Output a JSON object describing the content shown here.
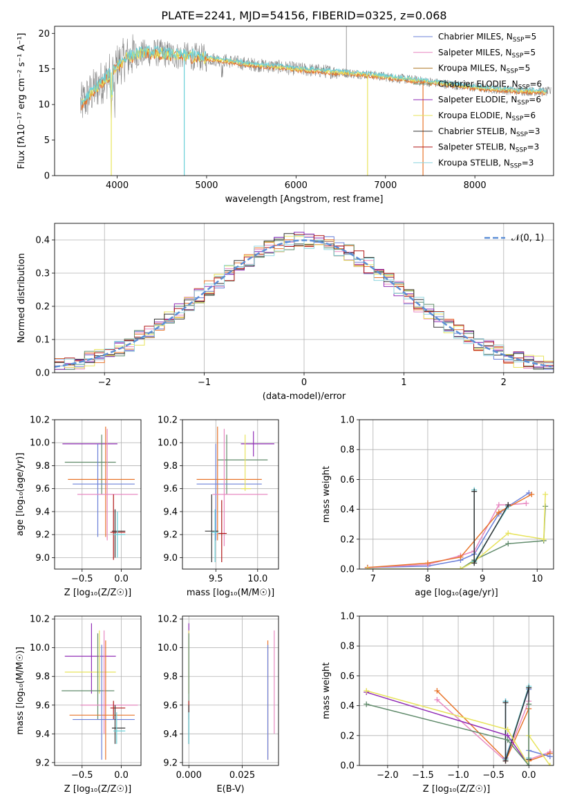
{
  "figure_title": "PLATE=2241, MJD=54156, FIBERID=0325, z=0.068",
  "model_colors": {
    "chabrier_miles": "#6a7fd8",
    "salpeter_miles": "#e887c0",
    "kroupa_miles": "#b07a2a",
    "chabrier_elodie": "#5f8a6a",
    "salpeter_elodie": "#8f2bb5",
    "kroupa_elodie": "#e7e35a",
    "chabrier_stelib": "#333333",
    "salpeter_stelib": "#b01515",
    "kroupa_stelib": "#8fd6df",
    "orange": "#e8742a",
    "data_grey": "#808080",
    "model_cyan": "#6ad0d8",
    "gauss": "#5b8ed6"
  },
  "chart_data": [
    {
      "id": "spectrum",
      "type": "line",
      "title": "PLATE=2241, MJD=54156, FIBERID=0325, z=0.068",
      "xlabel": "wavelength [Angstrom, rest frame]",
      "ylabel": "Flux [fλ10⁻¹⁷ erg cm⁻² s⁻¹ A⁻¹]",
      "xlim": [
        3300,
        8880
      ],
      "ylim": [
        0,
        21
      ],
      "xticks": [
        4000,
        5000,
        6000,
        7000,
        8000
      ],
      "yticks": [
        0,
        5,
        10,
        15,
        20
      ],
      "grid": false,
      "legend_position": "top-right",
      "legend": [
        {
          "label": "Chabrier MILES, N",
          "sub": "SSP",
          "suffix": "=5",
          "color": "#6a7fd8"
        },
        {
          "label": "Salpeter MILES, N",
          "sub": "SSP",
          "suffix": "=5",
          "color": "#e887c0"
        },
        {
          "label": "Kroupa MILES, N",
          "sub": "SSP",
          "suffix": "=5",
          "color": "#b07a2a"
        },
        {
          "label": "Chabrier ELODIE, N",
          "sub": "SSP",
          "suffix": "=6",
          "color": "#5f8a6a"
        },
        {
          "label": "Salpeter ELODIE, N",
          "sub": "SSP",
          "suffix": "=6",
          "color": "#8f2bb5"
        },
        {
          "label": "Kroupa ELODIE, N",
          "sub": "SSP",
          "suffix": "=6",
          "color": "#e7e35a"
        },
        {
          "label": "Chabrier STELIB, N",
          "sub": "SSP",
          "suffix": "=3",
          "color": "#333333"
        },
        {
          "label": "Salpeter STELIB, N",
          "sub": "SSP",
          "suffix": "=3",
          "color": "#b01515"
        },
        {
          "label": "Kroupa STELIB, N",
          "sub": "SSP",
          "suffix": "=3",
          "color": "#8fd6df"
        }
      ],
      "continuum": {
        "x": [
          3600,
          3700,
          3800,
          3900,
          4000,
          4100,
          4200,
          4300,
          4400,
          4500,
          4600,
          4700,
          4800,
          4900,
          5000,
          5200,
          5400,
          5600,
          5800,
          6000,
          6200,
          6400,
          6600,
          6800,
          7000,
          7200,
          7400,
          7600,
          7800,
          8000,
          8200,
          8400,
          8600,
          8800
        ],
        "y": [
          10.0,
          11.5,
          12.8,
          14.0,
          15.5,
          16.5,
          17.0,
          17.2,
          17.3,
          17.2,
          17.0,
          16.8,
          16.8,
          16.7,
          16.5,
          16.2,
          15.8,
          15.5,
          15.3,
          15.0,
          14.8,
          14.6,
          14.4,
          14.2,
          13.9,
          13.6,
          13.3,
          13.0,
          12.7,
          12.4,
          12.2,
          12.0,
          11.9,
          11.8
        ]
      },
      "dips": [
        {
          "x": 3934,
          "y": 0
        },
        {
          "x": 4750,
          "y": 0
        },
        {
          "x": 6800,
          "y": 0
        },
        {
          "x": 7420,
          "y": 0
        }
      ],
      "emission": [
        {
          "x": 6563,
          "y": 21
        }
      ]
    },
    {
      "id": "residuals",
      "type": "step",
      "xlabel": "(data-model)/error",
      "ylabel": "Normed distribution",
      "xlim": [
        -2.5,
        2.5
      ],
      "ylim": [
        0,
        0.45
      ],
      "xticks": [
        -2,
        -1,
        0,
        1,
        2
      ],
      "yticks": [
        0.0,
        0.1,
        0.2,
        0.3,
        0.4
      ],
      "grid": true,
      "legend_position": "top-right",
      "gaussian_label": "𝒩(0, 1)",
      "bin_width": 0.1
    },
    {
      "id": "age_vs_z",
      "type": "errorbar",
      "xlabel": "Z [log₁₀(Z/Z☉)]",
      "ylabel": "age  [log₁₀(age/yr)]",
      "xlim": [
        -0.85,
        0.25
      ],
      "ylim": [
        8.9,
        10.2
      ],
      "xticks": [
        -0.5,
        0.0
      ],
      "yticks": [
        9.0,
        9.2,
        9.4,
        9.6,
        9.8,
        10.0,
        10.2
      ],
      "grid": true,
      "points": [
        {
          "x": -0.38,
          "y": 9.99,
          "xlo": -0.75,
          "xhi": -0.05,
          "ylo": 9.99,
          "yhi": 9.99,
          "c": "#8f2bb5"
        },
        {
          "x": -0.25,
          "y": 9.83,
          "xlo": -0.72,
          "xhi": -0.07,
          "ylo": 9.55,
          "yhi": 10.07,
          "c": "#5f8a6a"
        },
        {
          "x": -0.2,
          "y": 9.68,
          "xlo": -0.68,
          "xhi": 0.17,
          "ylo": 9.18,
          "yhi": 10.14,
          "c": "#e8742a"
        },
        {
          "x": -0.3,
          "y": 9.64,
          "xlo": -0.62,
          "xhi": 0.17,
          "ylo": 9.18,
          "yhi": 9.99,
          "c": "#6a7fd8"
        },
        {
          "x": -0.18,
          "y": 9.55,
          "xlo": -0.56,
          "xhi": 0.21,
          "ylo": 9.15,
          "yhi": 10.12,
          "c": "#e887c0"
        },
        {
          "x": -0.1,
          "y": 9.22,
          "xlo": -0.14,
          "xhi": 0.05,
          "ylo": 8.98,
          "yhi": 9.55,
          "c": "#b01515"
        },
        {
          "x": -0.08,
          "y": 9.23,
          "xlo": -0.12,
          "xhi": 0.05,
          "ylo": 9.0,
          "yhi": 9.42,
          "c": "#333333"
        },
        {
          "x": -0.05,
          "y": 9.2,
          "xlo": -0.1,
          "xhi": 0.05,
          "ylo": 9.0,
          "yhi": 9.4,
          "c": "#6ad0d8"
        }
      ]
    },
    {
      "id": "age_vs_mass",
      "type": "errorbar",
      "xlabel": "mass [log₁₀(M/M☉)]",
      "ylabel": "",
      "xlim": [
        9.1,
        10.25
      ],
      "ylim": [
        8.9,
        10.2
      ],
      "xticks": [
        9.5,
        10.0
      ],
      "yticks": [
        9.0,
        9.2,
        9.4,
        9.6,
        9.8,
        10.0,
        10.2
      ],
      "grid": true,
      "points": [
        {
          "x": 9.95,
          "y": 9.99,
          "xlo": 9.8,
          "xhi": 10.2,
          "ylo": 9.88,
          "yhi": 10.1,
          "c": "#8f2bb5"
        },
        {
          "x": 9.63,
          "y": 9.85,
          "xlo": 9.52,
          "xhi": 10.12,
          "ylo": 9.55,
          "yhi": 10.07,
          "c": "#5f8a6a"
        },
        {
          "x": 9.52,
          "y": 9.68,
          "xlo": 9.27,
          "xhi": 10.05,
          "ylo": 9.15,
          "yhi": 10.14,
          "c": "#e8742a"
        },
        {
          "x": 9.5,
          "y": 9.64,
          "xlo": 9.27,
          "xhi": 10.05,
          "ylo": 9.15,
          "yhi": 9.99,
          "c": "#6a7fd8"
        },
        {
          "x": 9.6,
          "y": 9.55,
          "xlo": 9.46,
          "xhi": 10.12,
          "ylo": 9.1,
          "yhi": 10.12,
          "c": "#e887c0"
        },
        {
          "x": 9.85,
          "y": 9.6,
          "xlo": 9.8,
          "xhi": 9.92,
          "ylo": 9.58,
          "yhi": 10.07,
          "c": "#e7e35a"
        },
        {
          "x": 9.57,
          "y": 9.21,
          "xlo": 9.53,
          "xhi": 9.63,
          "ylo": 8.96,
          "yhi": 9.5,
          "c": "#b01515"
        },
        {
          "x": 9.45,
          "y": 9.23,
          "xlo": 9.37,
          "xhi": 9.53,
          "ylo": 8.96,
          "yhi": 9.55,
          "c": "#333333"
        },
        {
          "x": 9.49,
          "y": 9.22,
          "xlo": 9.45,
          "xhi": 9.53,
          "ylo": 8.96,
          "yhi": 9.42,
          "c": "#6ad0d8"
        }
      ]
    },
    {
      "id": "massweight_vs_age",
      "type": "line",
      "xlabel": "age  [log₁₀(age/yr)]",
      "ylabel": "mass weight",
      "xlim": [
        6.75,
        10.3
      ],
      "ylim": [
        0,
        1.0
      ],
      "xticks": [
        7,
        8,
        9,
        10
      ],
      "yticks": [
        0.0,
        0.2,
        0.4,
        0.6,
        0.8,
        1.0
      ],
      "grid": true,
      "series": [
        {
          "c": "#6a7fd8",
          "x": [
            6.9,
            8.0,
            8.6,
            8.85,
            9.3,
            9.47,
            9.85
          ],
          "y": [
            0.01,
            0.02,
            0.06,
            0.1,
            0.37,
            0.42,
            0.51
          ]
        },
        {
          "c": "#e887c0",
          "x": [
            6.9,
            8.0,
            8.6,
            8.85,
            9.3,
            9.47,
            9.8
          ],
          "y": [
            0.01,
            0.03,
            0.09,
            0.12,
            0.43,
            0.43,
            0.44
          ]
        },
        {
          "c": "#e8742a",
          "x": [
            6.9,
            8.0,
            8.6,
            9.3,
            9.9
          ],
          "y": [
            0.01,
            0.04,
            0.08,
            0.38,
            0.5
          ]
        },
        {
          "c": "#5f8a6a",
          "x": [
            6.9,
            8.6,
            8.85,
            9.47,
            10.12,
            10.15
          ],
          "y": [
            0.0,
            0.0,
            0.06,
            0.17,
            0.19,
            0.42
          ]
        },
        {
          "c": "#e7e35a",
          "x": [
            6.9,
            8.6,
            8.85,
            9.47,
            10.12,
            10.15
          ],
          "y": [
            0.0,
            0.0,
            0.05,
            0.24,
            0.2,
            0.5
          ]
        },
        {
          "c": "#6ad0d8",
          "x": [
            8.85,
            8.85,
            9.47
          ],
          "y": [
            0.53,
            0.05,
            0.42
          ]
        },
        {
          "c": "#333333",
          "x": [
            8.85,
            8.85,
            9.47
          ],
          "y": [
            0.52,
            0.04,
            0.43
          ]
        }
      ]
    },
    {
      "id": "mass_vs_z",
      "type": "errorbar",
      "xlabel": "Z [log₁₀(Z/Z☉)]",
      "ylabel": "mass [log₁₀(M/M☉)]",
      "xlim": [
        -0.85,
        0.25
      ],
      "ylim": [
        9.18,
        10.22
      ],
      "xticks": [
        -0.5,
        0.0
      ],
      "yticks": [
        9.2,
        9.4,
        9.6,
        9.8,
        10.0,
        10.2
      ],
      "grid": true,
      "points": [
        {
          "x": -0.38,
          "y": 9.94,
          "xlo": -0.72,
          "xhi": -0.07,
          "ylo": 9.68,
          "yhi": 10.17,
          "c": "#8f2bb5"
        },
        {
          "x": -0.28,
          "y": 9.83,
          "xlo": -0.72,
          "xhi": -0.07,
          "ylo": 9.68,
          "yhi": 10.12,
          "c": "#e7e35a"
        },
        {
          "x": -0.3,
          "y": 9.7,
          "xlo": -0.76,
          "xhi": -0.09,
          "ylo": 9.5,
          "yhi": 10.1,
          "c": "#5f8a6a"
        },
        {
          "x": -0.22,
          "y": 9.6,
          "xlo": -0.52,
          "xhi": 0.21,
          "ylo": 9.4,
          "yhi": 10.12,
          "c": "#e887c0"
        },
        {
          "x": -0.1,
          "y": 9.58,
          "xlo": -0.14,
          "xhi": 0.05,
          "ylo": 9.5,
          "yhi": 9.63,
          "c": "#b01515"
        },
        {
          "x": -0.2,
          "y": 9.53,
          "xlo": -0.66,
          "xhi": 0.17,
          "ylo": 9.22,
          "yhi": 10.05,
          "c": "#e8742a"
        },
        {
          "x": -0.25,
          "y": 9.5,
          "xlo": -0.62,
          "xhi": 0.17,
          "ylo": 9.22,
          "yhi": 10.02,
          "c": "#6a7fd8"
        },
        {
          "x": -0.08,
          "y": 9.44,
          "xlo": -0.12,
          "xhi": 0.05,
          "ylo": 9.33,
          "yhi": 9.6,
          "c": "#333333"
        },
        {
          "x": -0.06,
          "y": 9.42,
          "xlo": -0.1,
          "xhi": 0.05,
          "ylo": 9.33,
          "yhi": 9.55,
          "c": "#6ad0d8"
        }
      ]
    },
    {
      "id": "mass_vs_ebv",
      "type": "errorbar",
      "xlabel": "E(B-V)",
      "ylabel": "",
      "xlim": [
        -0.003,
        0.042
      ],
      "ylim": [
        9.18,
        10.22
      ],
      "xticks": [
        0.0,
        0.025
      ],
      "xtick_labels": [
        "0.000",
        "0.025"
      ],
      "yticks": [
        9.2,
        9.4,
        9.6,
        9.8,
        10.0,
        10.2
      ],
      "grid": true,
      "points": [
        {
          "x": 0.0,
          "y": 9.94,
          "ylo": 9.68,
          "yhi": 10.17,
          "c": "#8f2bb5"
        },
        {
          "x": 0.0,
          "y": 9.83,
          "ylo": 9.68,
          "yhi": 10.12,
          "c": "#e7e35a"
        },
        {
          "x": 0.0,
          "y": 9.7,
          "ylo": 9.5,
          "yhi": 10.1,
          "c": "#5f8a6a"
        },
        {
          "x": 0.0,
          "y": 9.58,
          "ylo": 9.5,
          "yhi": 9.63,
          "c": "#b01515"
        },
        {
          "x": 0.0,
          "y": 9.44,
          "ylo": 9.33,
          "yhi": 9.6,
          "c": "#333333"
        },
        {
          "x": 0.0,
          "y": 9.42,
          "ylo": 9.33,
          "yhi": 9.55,
          "c": "#6ad0d8"
        },
        {
          "x": 0.037,
          "y": 9.6,
          "ylo": 9.22,
          "yhi": 10.05,
          "c": "#e8742a"
        },
        {
          "x": 0.037,
          "y": 9.6,
          "ylo": 9.22,
          "yhi": 10.02,
          "c": "#6a7fd8"
        },
        {
          "x": 0.04,
          "y": 9.7,
          "ylo": 9.4,
          "yhi": 10.12,
          "c": "#e887c0"
        }
      ]
    },
    {
      "id": "massweight_vs_z",
      "type": "line",
      "xlabel": "Z [log₁₀(Z/Z☉)]",
      "ylabel": "mass weight",
      "xlim": [
        -2.4,
        0.35
      ],
      "ylim": [
        0,
        1.0
      ],
      "xticks": [
        -2.0,
        -1.5,
        -1.0,
        -0.5,
        0.0
      ],
      "yticks": [
        0.0,
        0.2,
        0.4,
        0.6,
        0.8,
        1.0
      ],
      "grid": true,
      "series": [
        {
          "c": "#e887c0",
          "x": [
            -1.3,
            -0.33,
            -0.33,
            0.0,
            0.0,
            0.3
          ],
          "y": [
            0.44,
            0.03,
            0.04,
            0.43,
            0.04,
            0.09
          ]
        },
        {
          "c": "#e8742a",
          "x": [
            -1.3,
            -0.33,
            -0.33,
            0.0,
            0.0,
            0.3
          ],
          "y": [
            0.5,
            0.04,
            0.03,
            0.38,
            0.03,
            0.08
          ]
        },
        {
          "c": "#6a7fd8",
          "x": [
            -0.33,
            -0.33,
            0.0,
            0.0,
            0.3
          ],
          "y": [
            0.43,
            0.05,
            0.51,
            0.1,
            0.06
          ]
        },
        {
          "c": "#6ad0d8",
          "x": [
            -0.33,
            -0.33,
            0.0,
            0.0
          ],
          "y": [
            0.43,
            0.04,
            0.53,
            0.05
          ]
        },
        {
          "c": "#333333",
          "x": [
            -0.33,
            -0.33,
            0.0,
            0.0
          ],
          "y": [
            0.42,
            0.03,
            0.52,
            0.04
          ]
        },
        {
          "c": "#8f2bb5",
          "x": [
            -2.3,
            -0.3,
            0.0
          ],
          "y": [
            0.49,
            0.2,
            0.0
          ]
        },
        {
          "c": "#e7e35a",
          "x": [
            -2.3,
            -0.3,
            0.0,
            0.0,
            0.3
          ],
          "y": [
            0.5,
            0.24,
            0.0,
            0.2,
            0.0
          ]
        },
        {
          "c": "#5f8a6a",
          "x": [
            -2.3,
            -0.3,
            0.0,
            0.0
          ],
          "y": [
            0.41,
            0.17,
            0.0,
            0.41
          ]
        }
      ]
    }
  ]
}
